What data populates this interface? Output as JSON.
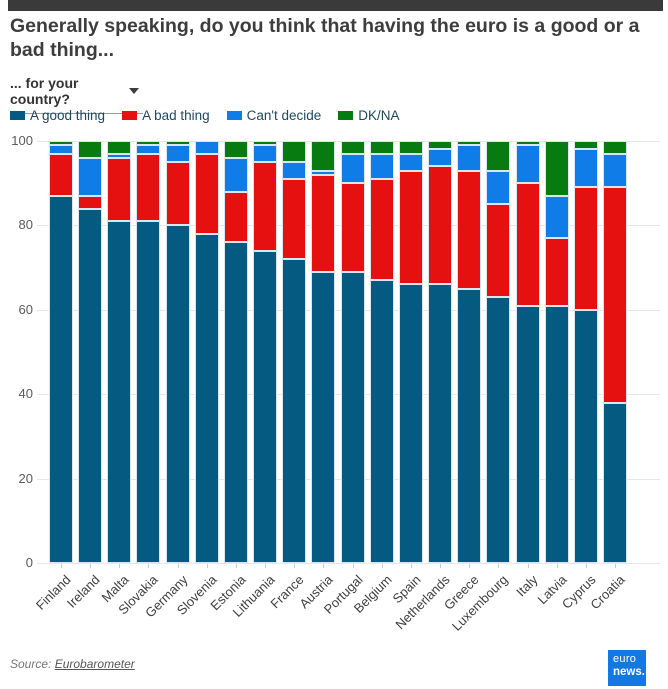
{
  "header": {
    "title": "Generally speaking, do you think that having the euro is a good or a bad thing..."
  },
  "controls": {
    "dropdown_label": "... for your country?"
  },
  "footer": {
    "source_label": "Source:",
    "source_link_text": "Eurobarometer",
    "logo": {
      "line1": "euro",
      "line2": "news."
    }
  },
  "colors": {
    "good": "#045a80",
    "bad": "#e51111",
    "cant_decide": "#0f7ce8",
    "dk_na": "#077a10",
    "logo_blue": "#1378e4",
    "topbar": "#3a3a3a"
  },
  "chart_data": {
    "type": "bar",
    "subtype": "stacked-column",
    "title": "Generally speaking, do you think that having the euro is a good or a bad thing...",
    "xlabel": "",
    "ylabel": "",
    "ylim": [
      0,
      100
    ],
    "yticks": [
      0,
      20,
      40,
      60,
      80,
      100
    ],
    "grid": true,
    "legend_position": "top",
    "categories": [
      "Finland",
      "Ireland",
      "Malta",
      "Slovakia",
      "Germany",
      "Slovenia",
      "Estonia",
      "Lithuania",
      "France",
      "Austria",
      "Portugal",
      "Belgium",
      "Spain",
      "Netherlands",
      "Greece",
      "Luxembourg",
      "Italy",
      "Latvia",
      "Cyprus",
      "Croatia"
    ],
    "series": [
      {
        "name": "A good thing",
        "color": "#045a80",
        "values": [
          87,
          84,
          81,
          81,
          80,
          78,
          76,
          74,
          72,
          69,
          69,
          67,
          66,
          66,
          65,
          63,
          61,
          61,
          60,
          38
        ]
      },
      {
        "name": "A bad thing",
        "color": "#e51111",
        "values": [
          10,
          3,
          15,
          16,
          15,
          19,
          12,
          21,
          19,
          23,
          21,
          24,
          27,
          28,
          28,
          22,
          29,
          16,
          29,
          51
        ]
      },
      {
        "name": "Can't decide",
        "color": "#0f7ce8",
        "values": [
          2,
          9,
          1,
          2,
          4,
          3,
          8,
          4,
          4,
          1,
          7,
          6,
          4,
          4,
          6,
          8,
          9,
          10,
          9,
          8
        ]
      },
      {
        "name": "DK/NA",
        "color": "#077a10",
        "values": [
          1,
          4,
          3,
          1,
          1,
          0,
          4,
          1,
          5,
          7,
          3,
          3,
          3,
          2,
          1,
          7,
          1,
          13,
          2,
          3
        ]
      }
    ]
  }
}
